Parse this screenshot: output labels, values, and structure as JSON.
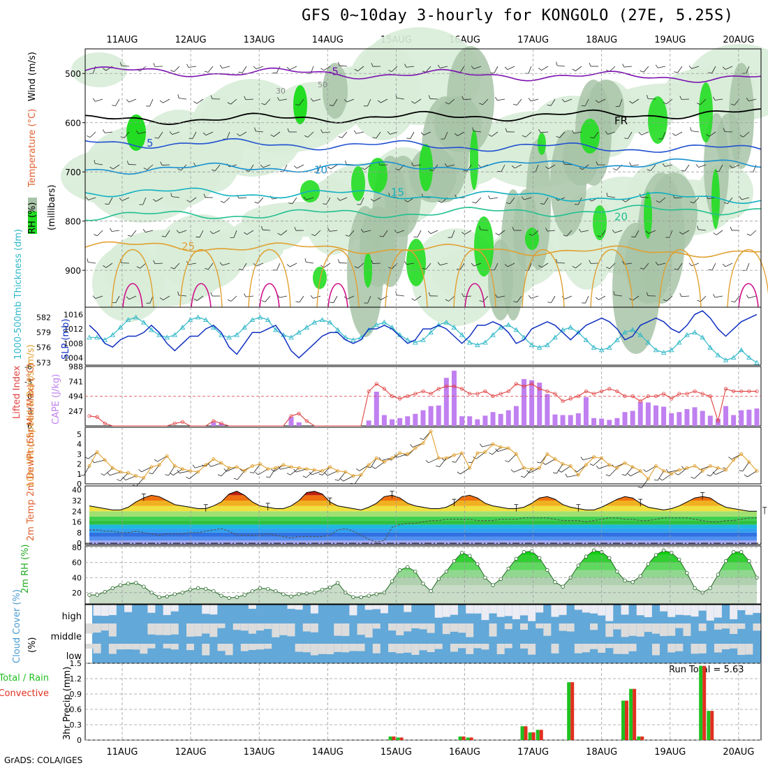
{
  "title": "GFS 0~10day 3-hourly for KONGOLO (27E, 5.25S)",
  "credit": "GrADS: COLA/IGES",
  "run_total": "Run Total = 5.63",
  "colors": {
    "frame": "#000000",
    "grid": "#9a9a9a",
    "rh_light": "#d8ecd8",
    "rh_mid": "#a8c4a8",
    "rh_bright": "#22dd22",
    "temp_purple": "#7a10b0",
    "temp_blue": "#2050d0",
    "temp_cyan": "#10b0c0",
    "temp_teal": "#20c090",
    "temp_orange": "#e0a030",
    "temp_magenta": "#d0108a",
    "slp": "#1030c0",
    "thickness": "#30b8c8",
    "lifted": "#e04040",
    "cape": "#c080f0",
    "wind_speed": "#e0a030",
    "cloud_fill": "#62a8d8",
    "cloud_clear": "#ececf4",
    "precip_total": "#20c020",
    "precip_conv": "#e03020"
  },
  "chart_data": [
    {
      "type": "contour",
      "panel": "upper-air",
      "ylabel_parts": [
        "RH (%)",
        "Temperature (°C)",
        "Wind (m/s)"
      ],
      "yaxis_label": "(millibars)",
      "dates": [
        "11AUG",
        "12AUG",
        "13AUG",
        "14AUG",
        "15AUG",
        "16AUG",
        "17AUG",
        "18AUG",
        "19AUG",
        "20AUG"
      ],
      "pressure_ticks": [
        500,
        600,
        700,
        800,
        900
      ],
      "ylim": [
        450,
        975
      ],
      "isotherms": [
        {
          "label": "-5",
          "pressure": 495,
          "color": "#7a10b0"
        },
        {
          "label": "FR",
          "pressure": 595,
          "color": "#000000"
        },
        {
          "label": "5",
          "pressure": 640,
          "color": "#2050d0"
        },
        {
          "label": "10",
          "pressure": 695,
          "color": "#1890d0"
        },
        {
          "label": "15",
          "pressure": 740,
          "color": "#10b0c0"
        },
        {
          "label": "20",
          "pressure": 790,
          "color": "#20c090"
        },
        {
          "label": "25",
          "pressure": 850,
          "color": "#e0a030"
        }
      ],
      "rh_labels": [
        "50",
        "30"
      ]
    },
    {
      "type": "line",
      "panel": "slp-thickness",
      "ylabel_left": "1000-500mb Thickness (dm)",
      "ylabel_right": "SLP (mb)",
      "thickness_ticks": [
        573,
        576,
        579,
        582
      ],
      "slp_ticks": [
        1004,
        1008,
        1012,
        1016
      ],
      "thickness_ylim": [
        572.5,
        584
      ],
      "slp_ylim": [
        1002,
        1018
      ],
      "slp": [
        1013,
        1011,
        1008,
        1007,
        1009,
        1010,
        1010,
        1011,
        1013,
        1011,
        1008,
        1006,
        1008,
        1010,
        1010,
        1012,
        1013,
        1011,
        1007,
        1005,
        1008,
        1011,
        1011,
        1012,
        1013,
        1010,
        1006,
        1004,
        1006,
        1008,
        1010,
        1011,
        1011,
        1009,
        1008,
        1009,
        1012,
        1012,
        1013,
        1012,
        1010,
        1008,
        1009,
        1012,
        1012,
        1013,
        1012,
        1010,
        1008,
        1010,
        1013,
        1013,
        1014,
        1013,
        1011,
        1008,
        1009,
        1012,
        1013,
        1014,
        1013,
        1011,
        1009,
        1011,
        1013,
        1014,
        1015,
        1014,
        1012,
        1009,
        1010,
        1013,
        1014,
        1015,
        1014,
        1012,
        1011,
        1013,
        1016,
        1017,
        1015,
        1012,
        1010,
        1012,
        1014,
        1015,
        1016
      ],
      "thickness": [
        578,
        578,
        577.5,
        578.5,
        580,
        581.5,
        582,
        581,
        579.5,
        578.5,
        578,
        578.5,
        580,
        581.5,
        582,
        581.5,
        580,
        578.5,
        578,
        578.5,
        580,
        581.5,
        582,
        581.5,
        579.5,
        578.5,
        578,
        579,
        580,
        581,
        581.5,
        581,
        579.5,
        578,
        577.5,
        578,
        579.5,
        580.5,
        581,
        580,
        578.5,
        577.5,
        577,
        577.5,
        579,
        580.5,
        581,
        580,
        578.5,
        577,
        576.5,
        577,
        578.5,
        580,
        580.5,
        579.5,
        578,
        576.5,
        576,
        576.5,
        578,
        579.5,
        580,
        579,
        577.5,
        576,
        575.5,
        576,
        577.5,
        579,
        579.5,
        578.5,
        577,
        575.5,
        575,
        575.5,
        577,
        578.5,
        579,
        578,
        576,
        574.5,
        573.5,
        574,
        575.5,
        574,
        573
      ]
    },
    {
      "type": "bar",
      "panel": "lifted-cape",
      "ylabel_left": "Lifted Index",
      "ylabel_right": "CAPE (J/kg)",
      "lifted_ticks": [
        -6,
        -3,
        0,
        3,
        6
      ],
      "cape_ticks": [
        247,
        494,
        741,
        988
      ],
      "lifted_ylim": [
        6,
        -6
      ],
      "cape_ylim": [
        0,
        988
      ],
      "cape": [
        0,
        0,
        0,
        0,
        0,
        0,
        0,
        0,
        0,
        0,
        0,
        0,
        0,
        0,
        0,
        0,
        60,
        40,
        0,
        0,
        0,
        0,
        0,
        0,
        0,
        0,
        150,
        60,
        0,
        0,
        0,
        0,
        0,
        0,
        0,
        0,
        90,
        570,
        180,
        110,
        130,
        160,
        200,
        260,
        330,
        340,
        800,
        920,
        160,
        160,
        110,
        170,
        230,
        200,
        260,
        330,
        780,
        760,
        720,
        530,
        190,
        180,
        180,
        210,
        480,
        130,
        120,
        100,
        130,
        230,
        250,
        400,
        390,
        340,
        320,
        210,
        230,
        280,
        310,
        250,
        170,
        120,
        330,
        180,
        260,
        270,
        290
      ],
      "lifted": [
        4,
        4.2,
        5.5,
        6,
        6.5,
        6.5,
        6.5,
        6.5,
        6.5,
        6.5,
        6.5,
        5.5,
        5.2,
        6,
        6.5,
        6.5,
        5,
        5.5,
        6.5,
        6.5,
        6.5,
        6.5,
        6.5,
        6.5,
        6.5,
        6.5,
        4,
        3.5,
        5,
        6.5,
        6.5,
        6.5,
        6.5,
        6.5,
        6.5,
        6.5,
        -1,
        -2.5,
        -1.5,
        0,
        0.5,
        0,
        -0.5,
        -1,
        -0.5,
        -1.5,
        -2,
        -2,
        -1.5,
        -0.5,
        -0.5,
        -1,
        0,
        -0.5,
        -1,
        -2.5,
        -2,
        -2.5,
        -1.5,
        -1,
        -0.5,
        1,
        0.5,
        0,
        -1,
        -0.5,
        -1,
        -1.5,
        -1,
        0,
        0,
        1,
        0,
        0,
        -0.5,
        0.5,
        -0.5,
        -0.5,
        -1,
        -0.5,
        0,
        5,
        -1.5,
        -1,
        -1,
        -1,
        -1
      ]
    },
    {
      "type": "line",
      "panel": "wind10m",
      "ylabel": "10m Wind Speed & Barbs (m/s)",
      "yticks": [
        0,
        1,
        2,
        3,
        4,
        5
      ],
      "ylim": [
        0,
        5.7
      ],
      "values": [
        1.8,
        3.2,
        2.4,
        1.6,
        1.2,
        1.1,
        0.8,
        0.6,
        1.7,
        1.9,
        2.8,
        1.8,
        1.5,
        1.3,
        1.2,
        1.9,
        2.5,
        2.1,
        1.6,
        1.7,
        1.3,
        1.8,
        2.0,
        1.5,
        1.6,
        1.9,
        1.7,
        1.6,
        1.5,
        1.4,
        1.3,
        1.7,
        1.3,
        1.2,
        0.8,
        0.9,
        1.9,
        2.6,
        2.2,
        2.6,
        3.1,
        3.0,
        3.6,
        4.1,
        5.3,
        2.6,
        2.6,
        2.9,
        3.1,
        1.6,
        3.1,
        3.2,
        4.0,
        3.7,
        3.6,
        3.0,
        1.6,
        1.5,
        1.6,
        3.0,
        2.5,
        2.0,
        1.8,
        0.9,
        1.9,
        2.7,
        2.6,
        1.9,
        1.6,
        2.1,
        1.7,
        1.3,
        0.5,
        1.8,
        1.3,
        1.0,
        1.4,
        1.6,
        1.8,
        1.3,
        1.8,
        1.6,
        1.4,
        2.4,
        3.0,
        2.2,
        1.3
      ]
    },
    {
      "type": "area",
      "panel": "temp2m",
      "ylabel": "2m Temp 2m DewPt (6hr Min/Max) (°C)",
      "yticks": [
        0,
        8,
        16,
        24,
        32,
        40
      ],
      "ylim": [
        -1,
        43
      ],
      "temp": [
        28,
        27,
        26,
        25,
        25,
        27,
        31,
        34,
        36,
        35,
        32,
        29,
        28,
        27,
        26,
        26,
        28,
        31,
        37,
        39,
        36,
        31,
        28,
        27,
        26,
        26,
        28,
        32,
        38,
        39,
        37,
        31,
        28,
        27,
        26,
        25,
        27,
        30,
        35,
        36,
        34,
        30,
        28,
        27,
        26,
        26,
        27,
        30,
        35,
        36,
        34,
        30,
        28,
        27,
        26,
        26,
        27,
        30,
        34,
        35,
        33,
        29,
        27,
        26,
        25,
        25,
        27,
        30,
        33,
        35,
        34,
        30,
        27,
        26,
        25,
        26,
        28,
        31,
        34,
        35,
        34,
        30,
        27,
        26,
        25,
        24,
        24
      ],
      "dewpoint": [
        10,
        10,
        9,
        9,
        8,
        8,
        9,
        8,
        7,
        6,
        7,
        7,
        7,
        8,
        8,
        9,
        10,
        11,
        9,
        6,
        6,
        6,
        6,
        7,
        6,
        5,
        4,
        5,
        5,
        5,
        5,
        6,
        10,
        11,
        9,
        6,
        3,
        1,
        2,
        12,
        14,
        15,
        15,
        16,
        17,
        17,
        18,
        18,
        18,
        18,
        17,
        17,
        17,
        18,
        18,
        18,
        19,
        19,
        19,
        19,
        18,
        17,
        17,
        17,
        16,
        17,
        18,
        19,
        19,
        18,
        18,
        17,
        17,
        18,
        19,
        19,
        19,
        19,
        18,
        17,
        16,
        16,
        17,
        17,
        18,
        19,
        19
      ]
    },
    {
      "type": "area",
      "panel": "rh2m",
      "ylabel": "2m RH (%)",
      "yticks": [
        20,
        40,
        60,
        80
      ],
      "ylim": [
        5,
        82
      ],
      "values": [
        17,
        17,
        21,
        26,
        30,
        32,
        33,
        28,
        20,
        14,
        15,
        18,
        20,
        24,
        26,
        25,
        22,
        16,
        13,
        14,
        17,
        22,
        26,
        25,
        22,
        18,
        15,
        18,
        19,
        20,
        24,
        27,
        33,
        20,
        14,
        14,
        16,
        18,
        20,
        35,
        50,
        54,
        48,
        32,
        22,
        38,
        48,
        62,
        73,
        69,
        58,
        40,
        30,
        38,
        52,
        65,
        74,
        75,
        66,
        50,
        34,
        28,
        40,
        56,
        68,
        76,
        74,
        66,
        48,
        36,
        34,
        42,
        58,
        70,
        76,
        73,
        64,
        46,
        26,
        20,
        26,
        44,
        62,
        74,
        74,
        62,
        40
      ]
    },
    {
      "type": "heatmap",
      "panel": "cloud",
      "ylabel": "Cloud Cover (%)",
      "levels": [
        "high",
        "middle",
        "low"
      ]
    },
    {
      "type": "bar",
      "panel": "precip",
      "ylabel": "3hr Precip (mm)",
      "side_label_total": "Total / Rain",
      "side_label_conv": "Convective",
      "yticks": [
        0,
        0.3,
        0.6,
        0.9,
        1.2,
        1.5
      ],
      "ylim": [
        0,
        1.5
      ],
      "total": [
        0,
        0,
        0,
        0,
        0,
        0,
        0,
        0,
        0,
        0,
        0,
        0,
        0,
        0,
        0,
        0,
        0,
        0,
        0,
        0,
        0,
        0,
        0,
        0,
        0,
        0,
        0,
        0,
        0,
        0,
        0,
        0,
        0,
        0,
        0,
        0,
        0,
        0,
        0,
        0.07,
        0.05,
        0,
        0,
        0,
        0,
        0,
        0,
        0,
        0.07,
        0.05,
        0,
        0,
        0,
        0,
        0,
        0,
        0.27,
        0.15,
        0.2,
        0,
        0,
        0,
        1.13,
        0,
        0,
        0,
        0,
        0,
        0,
        0.77,
        1.0,
        0.07,
        0,
        0,
        0,
        0,
        0,
        0,
        0,
        1.45,
        0.57,
        0,
        0,
        0,
        0,
        0,
        0
      ],
      "convective": [
        0,
        0,
        0,
        0,
        0,
        0,
        0,
        0,
        0,
        0,
        0,
        0,
        0,
        0,
        0,
        0,
        0,
        0,
        0,
        0,
        0,
        0,
        0,
        0,
        0,
        0,
        0,
        0,
        0,
        0,
        0,
        0,
        0,
        0,
        0,
        0,
        0,
        0,
        0,
        0.07,
        0.05,
        0,
        0,
        0,
        0,
        0,
        0,
        0,
        0.07,
        0.05,
        0,
        0,
        0,
        0,
        0,
        0,
        0.27,
        0.15,
        0.2,
        0,
        0,
        0,
        1.13,
        0,
        0,
        0,
        0,
        0,
        0,
        0.77,
        1.0,
        0.07,
        0,
        0,
        0,
        0,
        0,
        0,
        0,
        1.45,
        0.57,
        0,
        0,
        0,
        0,
        0,
        0
      ]
    }
  ]
}
